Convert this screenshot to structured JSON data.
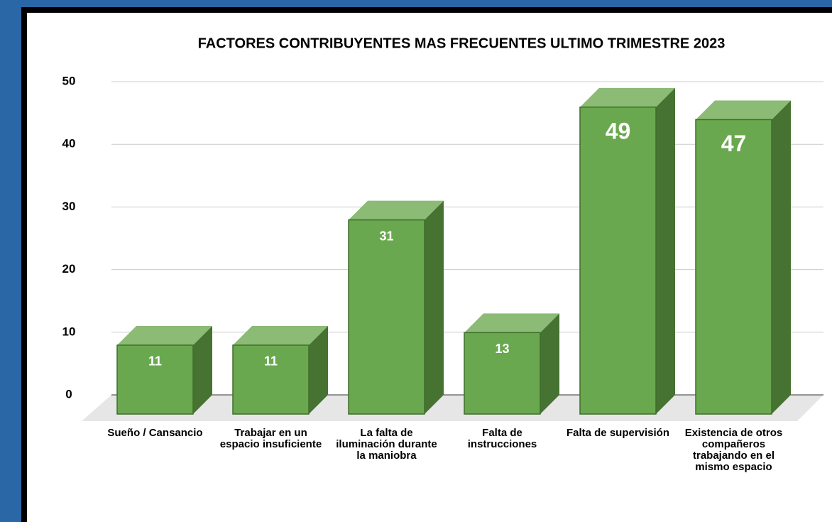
{
  "chart_data": {
    "type": "bar3d",
    "title": "FACTORES CONTRIBUYENTES MAS FRECUENTES ULTIMO TRIMESTRE 2023",
    "categories": [
      "Sueño / Cansancio",
      "Trabajar en un espacio insuficiente",
      "La falta de iluminación durante la maniobra",
      "Falta de instrucciones",
      "Falta de supervisión",
      "Existencia de otros compañeros trabajando en el mismo espacio"
    ],
    "values": [
      11,
      11,
      31,
      13,
      49,
      47
    ],
    "color": "#6aa84f",
    "ylim": [
      0,
      50
    ],
    "yticks": [
      0,
      10,
      20,
      30,
      40,
      50
    ],
    "grid": true
  }
}
